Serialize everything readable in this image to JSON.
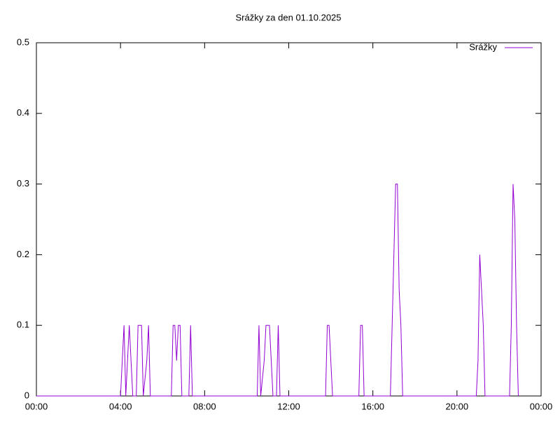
{
  "chart_data": {
    "type": "line",
    "title": "Srážky za den 01.10.2025",
    "series": [
      {
        "name": "Srážky",
        "color": "#9400d3",
        "x": [
          0,
          4.0,
          4.083,
          4.167,
          4.25,
          4.333,
          4.417,
          4.5,
          4.583,
          4.75,
          4.833,
          4.917,
          5.0,
          5.083,
          5.25,
          5.333,
          5.417,
          6.417,
          6.5,
          6.583,
          6.667,
          6.75,
          6.833,
          6.917,
          7.25,
          7.333,
          7.417,
          10.5,
          10.583,
          10.667,
          10.833,
          10.917,
          11.0,
          11.083,
          11.167,
          11.25,
          11.417,
          11.5,
          11.583,
          13.75,
          13.833,
          13.917,
          14.0,
          14.083,
          15.333,
          15.417,
          15.5,
          15.583,
          16.833,
          16.917,
          17.0,
          17.083,
          17.167,
          17.25,
          17.333,
          17.417,
          20.917,
          21.0,
          21.083,
          21.167,
          21.25,
          21.333,
          22.5,
          22.583,
          22.667,
          22.75,
          22.833,
          22.917
        ],
        "values": [
          0,
          0,
          0.05,
          0.1,
          0,
          0.05,
          0.1,
          0.05,
          0,
          0,
          0.1,
          0.1,
          0.1,
          0,
          0.05,
          0.1,
          0,
          0,
          0.1,
          0.1,
          0.05,
          0.1,
          0.1,
          0,
          0,
          0.1,
          0,
          0,
          0.1,
          0,
          0.05,
          0.1,
          0.1,
          0.1,
          0.05,
          0,
          0,
          0.1,
          0,
          0,
          0.1,
          0.1,
          0.05,
          0,
          0,
          0.1,
          0.1,
          0,
          0,
          0.1,
          0.2,
          0.3,
          0.3,
          0.15,
          0.1,
          0,
          0,
          0.05,
          0.2,
          0.15,
          0.1,
          0,
          0,
          0.1,
          0.3,
          0.25,
          0.1,
          0
        ]
      }
    ],
    "xlim": [
      0,
      24
    ],
    "xticks": [
      {
        "value": 0,
        "label": "00:00"
      },
      {
        "value": 4,
        "label": "04:00"
      },
      {
        "value": 8,
        "label": "08:00"
      },
      {
        "value": 12,
        "label": "12:00"
      },
      {
        "value": 16,
        "label": "16:00"
      },
      {
        "value": 20,
        "label": "20:00"
      },
      {
        "value": 24,
        "label": "00:00"
      }
    ],
    "ylim": [
      0,
      0.5
    ],
    "yticks": [
      0,
      0.1,
      0.2,
      0.3,
      0.4,
      0.5
    ],
    "legend": "top-right"
  }
}
